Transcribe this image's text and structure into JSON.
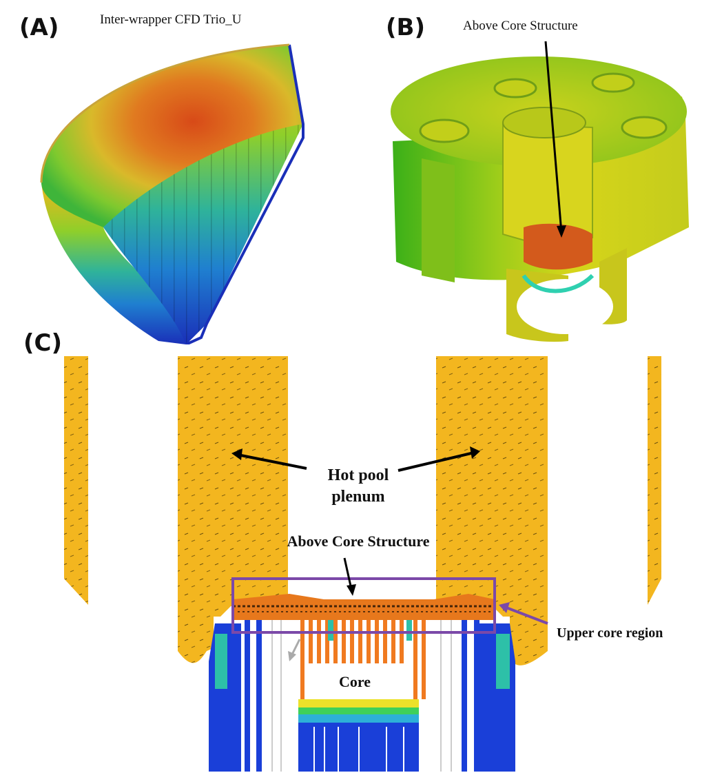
{
  "panels": {
    "a": {
      "label": "(A)",
      "title": "Inter-wrapper CFD Trio_U"
    },
    "b": {
      "label": "(B)",
      "annotation": "Above Core Structure"
    },
    "c": {
      "label": "(C)",
      "hot_pool_label_line1": "Hot pool",
      "hot_pool_label_line2": "plenum",
      "acs_label": "Above Core Structure",
      "upper_core_label": "Upper core region",
      "core_label": "Core"
    }
  },
  "colors": {
    "hot": "#e04a12",
    "warm": "#f2b51c",
    "mid": "#8fcf2a",
    "cool": "#1fa8c8",
    "cold": "#1a3fd8",
    "highlight_box": "#7b49a8"
  }
}
